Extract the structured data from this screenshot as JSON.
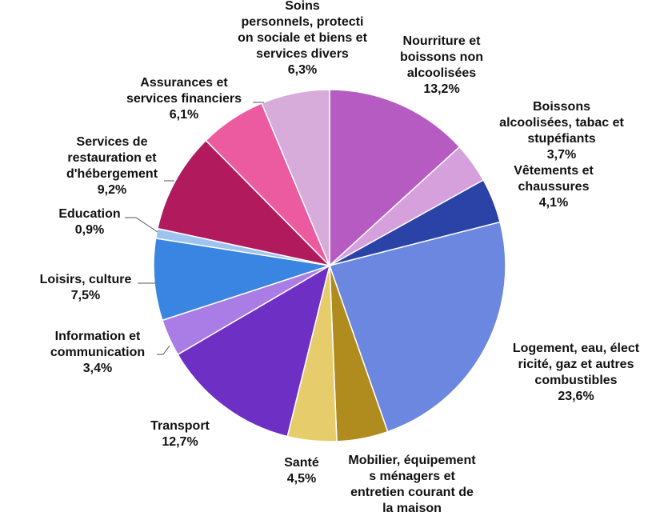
{
  "chart_data": {
    "type": "pie",
    "title": "",
    "start_angle_deg": 0,
    "direction": "clockwise",
    "slices": [
      {
        "label_lines": [
          "Nourriture et",
          "boissons non",
          "alcoolisées"
        ],
        "value_text": "13,2%",
        "value": 13.2,
        "color": "#B65BC2"
      },
      {
        "label_lines": [
          "Boissons",
          "alcoolisées, tabac et",
          "stupéfiants"
        ],
        "value_text": "3,7%",
        "value": 3.7,
        "color": "#D6A0DC"
      },
      {
        "label_lines": [
          "Vêtements et",
          "chaussures"
        ],
        "value_text": "4,1%",
        "value": 4.1,
        "color": "#2B43A6"
      },
      {
        "label_lines": [
          "Logement, eau, élect",
          "ricité, gaz et autres",
          "combustibles"
        ],
        "value_text": "23,6%",
        "value": 23.6,
        "color": "#6C87E0"
      },
      {
        "label_lines": [
          "Mobilier, équipement",
          "s ménagers et",
          "entretien courant de",
          "la maison"
        ],
        "value_text": "",
        "value": 4.7,
        "color": "#B08B1E"
      },
      {
        "label_lines": [
          "Santé"
        ],
        "value_text": "4,5%",
        "value": 4.5,
        "color": "#E6CC6A"
      },
      {
        "label_lines": [
          "Transport"
        ],
        "value_text": "12,7%",
        "value": 12.7,
        "color": "#6E2FC4"
      },
      {
        "label_lines": [
          "Information et",
          "communication"
        ],
        "value_text": "3,4%",
        "value": 3.4,
        "color": "#A97CE6"
      },
      {
        "label_lines": [
          "Loisirs, culture"
        ],
        "value_text": "7,5%",
        "value": 7.5,
        "color": "#3A85E2"
      },
      {
        "label_lines": [
          "Education"
        ],
        "value_text": "0,9%",
        "value": 0.9,
        "color": "#9FC3F0"
      },
      {
        "label_lines": [
          "Services de",
          "restauration et",
          "d'hébergement"
        ],
        "value_text": "9,2%",
        "value": 9.2,
        "color": "#B21A5E"
      },
      {
        "label_lines": [
          "Assurances et",
          "services financiers"
        ],
        "value_text": "6,1%",
        "value": 6.1,
        "color": "#EC5AA0"
      },
      {
        "label_lines": [
          "Soins",
          "personnels, protecti",
          "on sociale et biens et",
          "services divers"
        ],
        "value_text": "6,3%",
        "value": 6.3,
        "color": "#D8ACDA"
      }
    ]
  }
}
